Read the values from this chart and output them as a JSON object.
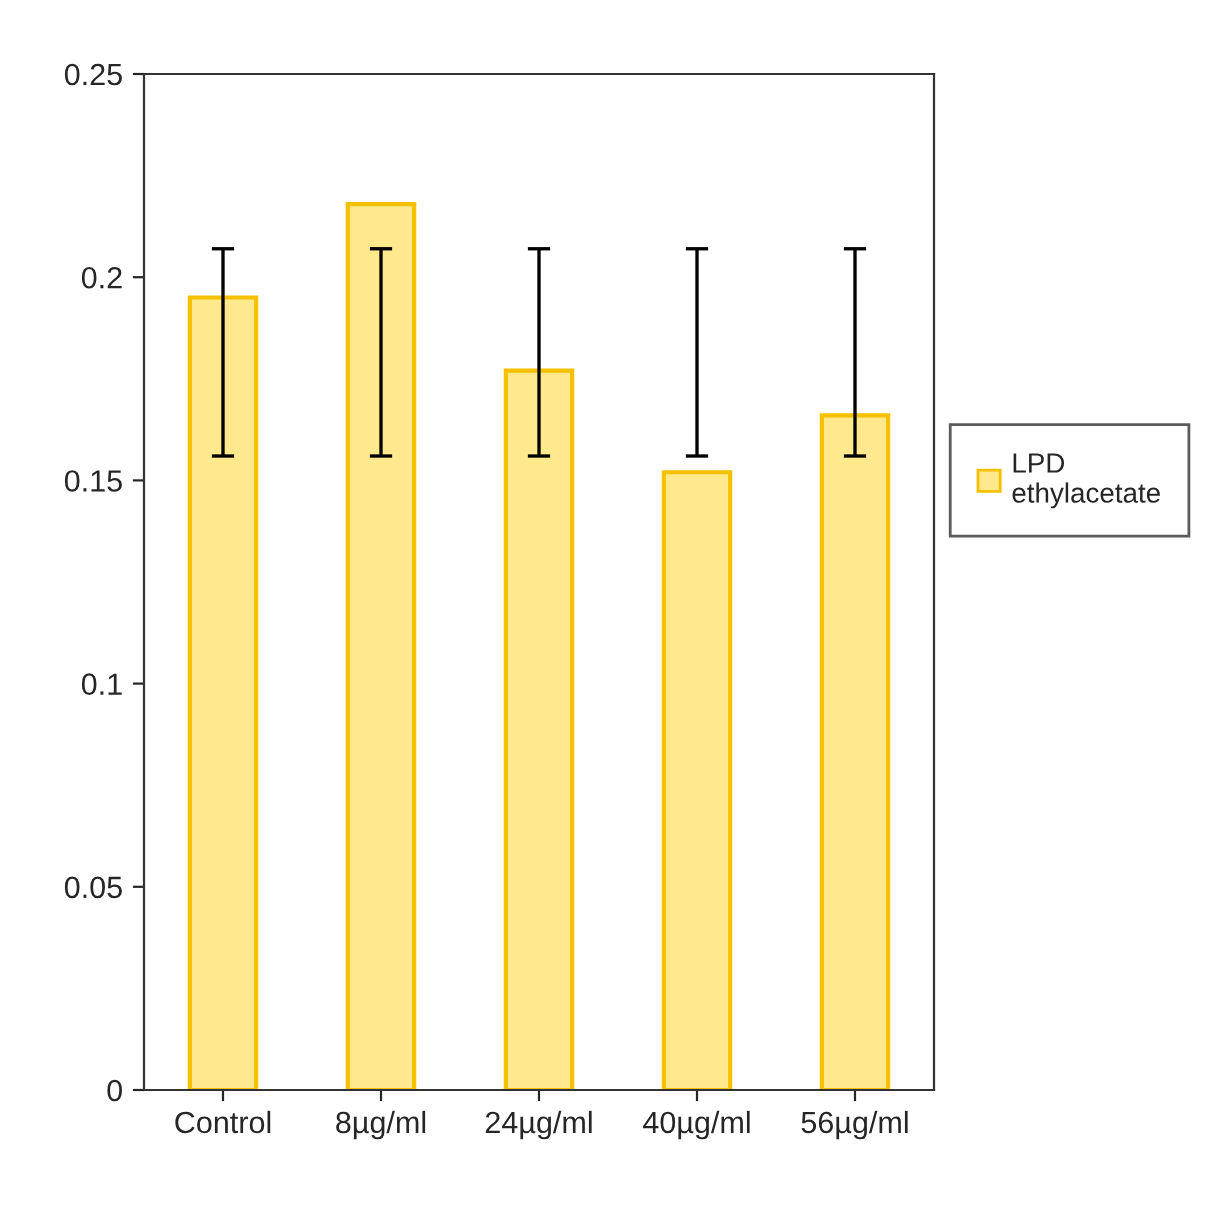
{
  "chart_data": {
    "type": "bar",
    "categories": [
      "Control",
      "8µg/ml",
      "24µg/ml",
      "40µg/ml",
      "56µg/ml"
    ],
    "series": [
      {
        "name": "LPD\nethylacetate",
        "color": "#ffe98c",
        "values": [
          0.195,
          0.218,
          0.177,
          0.152,
          0.166
        ],
        "errors": [
          [
            0.156,
            0.207
          ],
          [
            0.156,
            0.207
          ],
          [
            0.156,
            0.207
          ],
          [
            0.156,
            0.207
          ],
          [
            0.156,
            0.207
          ]
        ]
      }
    ],
    "ylim": [
      0,
      0.25
    ],
    "yticks": [
      0,
      0.05,
      0.1,
      0.15,
      0.2,
      0.25
    ],
    "grid": false,
    "legend": "right"
  }
}
